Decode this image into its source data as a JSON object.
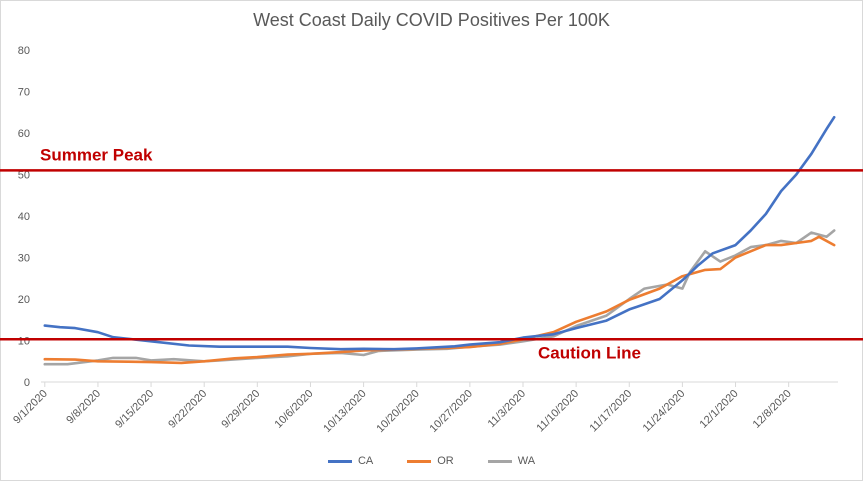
{
  "chart_data": {
    "type": "line",
    "title": "West Coast Daily COVID Positives Per 100K",
    "xlabel": "",
    "ylabel": "",
    "ylim": [
      0,
      80
    ],
    "yticks": [
      0,
      10,
      20,
      30,
      40,
      50,
      60,
      70,
      80
    ],
    "xtick_labels": [
      "9/1/2020",
      "9/8/2020",
      "9/15/2020",
      "9/22/2020",
      "9/29/2020",
      "10/6/2020",
      "10/13/2020",
      "10/20/2020",
      "10/27/2020",
      "11/3/2020",
      "11/10/2020",
      "11/17/2020",
      "11/24/2020",
      "12/1/2020",
      "12/8/2020"
    ],
    "x_start": "9/1/2020",
    "x_end": "12/14/2020",
    "grid": false,
    "legend": "bottom",
    "reference_lines": [
      {
        "label": "Summer Peak",
        "value": 51,
        "color": "#c00000"
      },
      {
        "label": "Caution Line",
        "value": 10.3,
        "color": "#c00000"
      }
    ],
    "series": [
      {
        "name": "CA",
        "color": "#4472c4",
        "points": [
          [
            "9/1/2020",
            13.6
          ],
          [
            "9/3/2020",
            13.2
          ],
          [
            "9/5/2020",
            13.0
          ],
          [
            "9/8/2020",
            12.0
          ],
          [
            "9/10/2020",
            10.8
          ],
          [
            "9/15/2020",
            9.8
          ],
          [
            "9/20/2020",
            8.8
          ],
          [
            "9/24/2020",
            8.5
          ],
          [
            "9/29/2020",
            8.5
          ],
          [
            "10/3/2020",
            8.5
          ],
          [
            "10/6/2020",
            8.2
          ],
          [
            "10/10/2020",
            7.9
          ],
          [
            "10/13/2020",
            8.0
          ],
          [
            "10/17/2020",
            7.9
          ],
          [
            "10/20/2020",
            8.1
          ],
          [
            "10/25/2020",
            8.6
          ],
          [
            "10/27/2020",
            9.0
          ],
          [
            "10/31/2020",
            9.6
          ],
          [
            "11/3/2020",
            10.7
          ],
          [
            "11/7/2020",
            11.5
          ],
          [
            "11/10/2020",
            13.0
          ],
          [
            "11/14/2020",
            14.8
          ],
          [
            "11/17/2020",
            17.5
          ],
          [
            "11/21/2020",
            20.0
          ],
          [
            "11/24/2020",
            24.5
          ],
          [
            "11/26/2020",
            28.0
          ],
          [
            "11/28/2020",
            31.0
          ],
          [
            "12/1/2020",
            33.0
          ],
          [
            "12/3/2020",
            36.5
          ],
          [
            "12/5/2020",
            40.5
          ],
          [
            "12/7/2020",
            46.0
          ],
          [
            "12/9/2020",
            50.0
          ],
          [
            "12/11/2020",
            55.0
          ],
          [
            "12/13/2020",
            61.0
          ],
          [
            "12/14/2020",
            63.8
          ]
        ]
      },
      {
        "name": "OR",
        "color": "#ed7d31",
        "points": [
          [
            "9/1/2020",
            5.5
          ],
          [
            "9/5/2020",
            5.4
          ],
          [
            "9/8/2020",
            5.0
          ],
          [
            "9/12/2020",
            4.9
          ],
          [
            "9/15/2020",
            4.8
          ],
          [
            "9/19/2020",
            4.6
          ],
          [
            "9/22/2020",
            5.0
          ],
          [
            "9/26/2020",
            5.7
          ],
          [
            "9/29/2020",
            6.0
          ],
          [
            "10/3/2020",
            6.6
          ],
          [
            "10/6/2020",
            6.8
          ],
          [
            "10/10/2020",
            7.2
          ],
          [
            "10/13/2020",
            7.6
          ],
          [
            "10/17/2020",
            7.8
          ],
          [
            "10/20/2020",
            8.0
          ],
          [
            "10/24/2020",
            8.2
          ],
          [
            "10/27/2020",
            8.4
          ],
          [
            "10/31/2020",
            9.2
          ],
          [
            "11/3/2020",
            10.3
          ],
          [
            "11/7/2020",
            12.0
          ],
          [
            "11/10/2020",
            14.5
          ],
          [
            "11/14/2020",
            17.0
          ],
          [
            "11/17/2020",
            19.8
          ],
          [
            "11/21/2020",
            22.5
          ],
          [
            "11/24/2020",
            25.5
          ],
          [
            "11/27/2020",
            27.0
          ],
          [
            "11/29/2020",
            27.2
          ],
          [
            "12/1/2020",
            30.0
          ],
          [
            "12/3/2020",
            31.5
          ],
          [
            "12/5/2020",
            33.0
          ],
          [
            "12/7/2020",
            33.0
          ],
          [
            "12/9/2020",
            33.5
          ],
          [
            "12/11/2020",
            34.0
          ],
          [
            "12/12/2020",
            35.0
          ],
          [
            "12/14/2020",
            33.0
          ]
        ]
      },
      {
        "name": "WA",
        "color": "#a5a5a5",
        "points": [
          [
            "9/1/2020",
            4.3
          ],
          [
            "9/4/2020",
            4.3
          ],
          [
            "9/8/2020",
            5.2
          ],
          [
            "9/10/2020",
            5.8
          ],
          [
            "9/13/2020",
            5.8
          ],
          [
            "9/15/2020",
            5.2
          ],
          [
            "9/18/2020",
            5.5
          ],
          [
            "9/22/2020",
            5.0
          ],
          [
            "9/24/2020",
            5.2
          ],
          [
            "9/29/2020",
            5.8
          ],
          [
            "10/3/2020",
            6.2
          ],
          [
            "10/6/2020",
            6.8
          ],
          [
            "10/10/2020",
            7.0
          ],
          [
            "10/13/2020",
            6.5
          ],
          [
            "10/15/2020",
            7.5
          ],
          [
            "10/20/2020",
            7.8
          ],
          [
            "10/24/2020",
            8.0
          ],
          [
            "10/27/2020",
            8.5
          ],
          [
            "10/31/2020",
            9.0
          ],
          [
            "11/3/2020",
            9.8
          ],
          [
            "11/7/2020",
            11.0
          ],
          [
            "11/10/2020",
            13.5
          ],
          [
            "11/14/2020",
            16.0
          ],
          [
            "11/17/2020",
            20.0
          ],
          [
            "11/19/2020",
            22.5
          ],
          [
            "11/22/2020",
            23.5
          ],
          [
            "11/24/2020",
            22.5
          ],
          [
            "11/25/2020",
            26.5
          ],
          [
            "11/27/2020",
            31.5
          ],
          [
            "11/29/2020",
            29.0
          ],
          [
            "12/1/2020",
            30.5
          ],
          [
            "12/3/2020",
            32.5
          ],
          [
            "12/5/2020",
            33.0
          ],
          [
            "12/7/2020",
            34.0
          ],
          [
            "12/9/2020",
            33.5
          ],
          [
            "12/11/2020",
            36.0
          ],
          [
            "12/13/2020",
            35.0
          ],
          [
            "12/14/2020",
            36.5
          ]
        ]
      }
    ]
  }
}
